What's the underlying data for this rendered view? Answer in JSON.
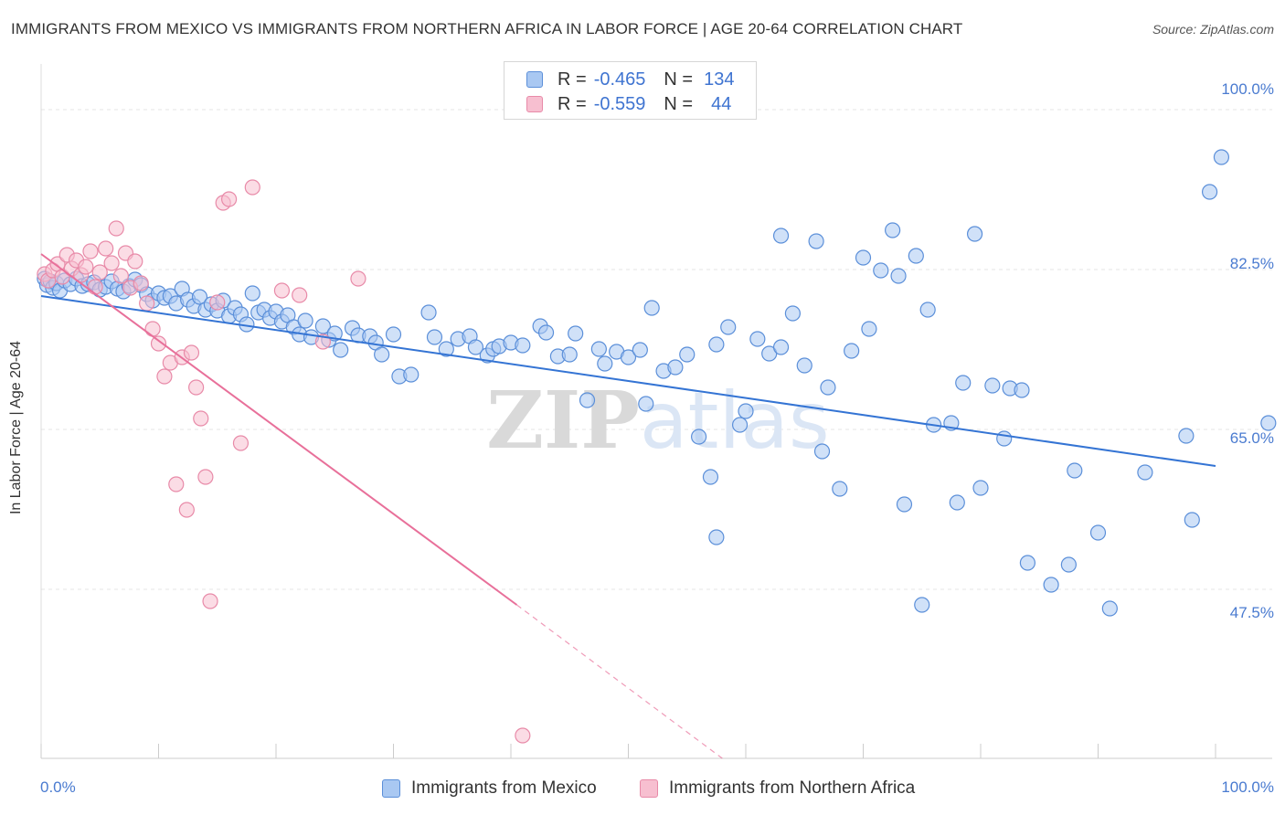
{
  "title": "IMMIGRANTS FROM MEXICO VS IMMIGRANTS FROM NORTHERN AFRICA IN LABOR FORCE | AGE 20-64 CORRELATION CHART",
  "source": "Source: ZipAtlas.com",
  "colors": {
    "mexico_fill": "#a9c8f2",
    "mexico_stroke": "#5b8fd9",
    "mexico_line": "#3474d4",
    "africa_fill": "#f7bfd0",
    "africa_stroke": "#e88aa8",
    "africa_line": "#e8709a",
    "grid": "#e4e4e4",
    "tick_text": "#4a7bd0"
  },
  "legend": {
    "mexico": {
      "r_label": "R =",
      "r_value": "-0.465",
      "n_label": "N =",
      "n_value": "134"
    },
    "africa": {
      "r_label": "R =",
      "r_value": "-0.559",
      "n_label": "N =",
      "n_value": "44"
    }
  },
  "chart_data": {
    "type": "scatter",
    "title": "IMMIGRANTS FROM MEXICO VS IMMIGRANTS FROM NORTHERN AFRICA IN LABOR FORCE | AGE 20-64 CORRELATION CHART",
    "xlabel": "",
    "ylabel": "In Labor Force | Age 20-64",
    "xlim": [
      0,
      100
    ],
    "ylim": [
      29,
      105
    ],
    "x_tick_labels": [
      "0.0%",
      "100.0%"
    ],
    "y_tick_labels": [
      {
        "value": 100.0,
        "label": "100.0%"
      },
      {
        "value": 82.5,
        "label": "82.5%"
      },
      {
        "value": 65.0,
        "label": "65.0%"
      },
      {
        "value": 47.5,
        "label": "47.5%"
      }
    ],
    "legend_position": "top-center",
    "series": [
      {
        "name": "Immigrants from Mexico",
        "color": "#5b8fd9",
        "points": [
          [
            0.3,
            81.5
          ],
          [
            0.5,
            80.8
          ],
          [
            0.8,
            81.2
          ],
          [
            1.0,
            80.5
          ],
          [
            1.3,
            81.0
          ],
          [
            1.6,
            80.2
          ],
          [
            2.0,
            81.3
          ],
          [
            2.5,
            80.9
          ],
          [
            3.0,
            81.5
          ],
          [
            3.5,
            80.7
          ],
          [
            4.0,
            80.9
          ],
          [
            4.5,
            81.1
          ],
          [
            5.0,
            80.3
          ],
          [
            5.5,
            80.6
          ],
          [
            6.0,
            81.2
          ],
          [
            6.5,
            80.4
          ],
          [
            7.0,
            80.1
          ],
          [
            7.5,
            80.7
          ],
          [
            8.0,
            81.4
          ],
          [
            8.5,
            80.8
          ],
          [
            9.0,
            79.8
          ],
          [
            9.5,
            79.1
          ],
          [
            10.0,
            79.9
          ],
          [
            10.5,
            79.4
          ],
          [
            11.0,
            79.6
          ],
          [
            11.5,
            78.8
          ],
          [
            12.0,
            80.4
          ],
          [
            12.5,
            79.2
          ],
          [
            13.0,
            78.5
          ],
          [
            13.5,
            79.5
          ],
          [
            14.0,
            78.1
          ],
          [
            14.5,
            78.7
          ],
          [
            15.0,
            78.0
          ],
          [
            15.5,
            79.1
          ],
          [
            16.0,
            77.4
          ],
          [
            16.5,
            78.3
          ],
          [
            17.0,
            77.6
          ],
          [
            17.5,
            76.5
          ],
          [
            18.0,
            79.9
          ],
          [
            18.5,
            77.8
          ],
          [
            19.0,
            78.1
          ],
          [
            19.5,
            77.2
          ],
          [
            20.0,
            77.9
          ],
          [
            20.5,
            76.8
          ],
          [
            21.0,
            77.5
          ],
          [
            21.5,
            76.2
          ],
          [
            22.0,
            75.4
          ],
          [
            22.5,
            76.9
          ],
          [
            23.0,
            75.1
          ],
          [
            24.0,
            76.3
          ],
          [
            24.5,
            74.8
          ],
          [
            25.0,
            75.5
          ],
          [
            25.5,
            73.7
          ],
          [
            26.5,
            76.1
          ],
          [
            27.0,
            75.3
          ],
          [
            28.0,
            75.2
          ],
          [
            28.5,
            74.5
          ],
          [
            29.0,
            73.2
          ],
          [
            30.0,
            75.4
          ],
          [
            30.5,
            70.8
          ],
          [
            31.5,
            71.0
          ],
          [
            33.0,
            77.8
          ],
          [
            33.5,
            75.1
          ],
          [
            34.5,
            73.8
          ],
          [
            35.5,
            74.9
          ],
          [
            36.5,
            75.2
          ],
          [
            37.0,
            74.0
          ],
          [
            38.0,
            73.1
          ],
          [
            38.5,
            73.8
          ],
          [
            39.0,
            74.1
          ],
          [
            40.0,
            74.5
          ],
          [
            41.0,
            74.2
          ],
          [
            42.5,
            76.3
          ],
          [
            43.0,
            75.6
          ],
          [
            44.0,
            73.0
          ],
          [
            45.0,
            73.2
          ],
          [
            45.5,
            75.5
          ],
          [
            46.5,
            68.2
          ],
          [
            47.5,
            73.8
          ],
          [
            48.0,
            72.2
          ],
          [
            49.0,
            73.5
          ],
          [
            50.0,
            72.9
          ],
          [
            51.0,
            73.7
          ],
          [
            51.5,
            67.8
          ],
          [
            52.0,
            78.3
          ],
          [
            53.0,
            71.4
          ],
          [
            54.0,
            71.8
          ],
          [
            55.0,
            73.2
          ],
          [
            56.0,
            64.2
          ],
          [
            57.0,
            59.8
          ],
          [
            57.5,
            74.3
          ],
          [
            57.5,
            53.2
          ],
          [
            58.5,
            76.2
          ],
          [
            59.5,
            65.5
          ],
          [
            60.0,
            67.0
          ],
          [
            61.0,
            74.9
          ],
          [
            62.0,
            73.3
          ],
          [
            63.0,
            86.2
          ],
          [
            63.0,
            74.0
          ],
          [
            64.0,
            77.7
          ],
          [
            65.0,
            72.0
          ],
          [
            66.0,
            85.6
          ],
          [
            66.5,
            62.6
          ],
          [
            67.0,
            69.6
          ],
          [
            68.0,
            58.5
          ],
          [
            69.0,
            73.6
          ],
          [
            70.0,
            83.8
          ],
          [
            70.5,
            76.0
          ],
          [
            71.5,
            82.4
          ],
          [
            72.5,
            86.8
          ],
          [
            73.0,
            81.8
          ],
          [
            73.5,
            56.8
          ],
          [
            74.5,
            84.0
          ],
          [
            75.0,
            45.8
          ],
          [
            75.5,
            78.1
          ],
          [
            76.0,
            65.5
          ],
          [
            77.5,
            65.7
          ],
          [
            78.0,
            57.0
          ],
          [
            78.5,
            70.1
          ],
          [
            79.5,
            86.4
          ],
          [
            80.0,
            58.6
          ],
          [
            81.0,
            69.8
          ],
          [
            82.0,
            64.0
          ],
          [
            82.5,
            69.5
          ],
          [
            83.5,
            69.3
          ],
          [
            84.0,
            50.4
          ],
          [
            86.0,
            48.0
          ],
          [
            87.5,
            50.2
          ],
          [
            88.0,
            60.5
          ],
          [
            90.0,
            53.7
          ],
          [
            91.0,
            45.4
          ],
          [
            94.0,
            60.3
          ],
          [
            97.5,
            64.3
          ],
          [
            98.0,
            55.1
          ],
          [
            99.5,
            91.0
          ],
          [
            100.5,
            94.8
          ],
          [
            104.5,
            65.7
          ]
        ]
      },
      {
        "name": "Immigrants from Northern Africa",
        "color": "#e88aa8",
        "points": [
          [
            0.3,
            82.0
          ],
          [
            0.6,
            81.3
          ],
          [
            1.0,
            82.4
          ],
          [
            1.4,
            83.1
          ],
          [
            1.8,
            81.7
          ],
          [
            2.2,
            84.1
          ],
          [
            2.6,
            82.6
          ],
          [
            3.0,
            83.5
          ],
          [
            3.4,
            81.9
          ],
          [
            3.8,
            82.8
          ],
          [
            4.2,
            84.5
          ],
          [
            4.6,
            80.6
          ],
          [
            5.0,
            82.2
          ],
          [
            5.5,
            84.8
          ],
          [
            6.0,
            83.2
          ],
          [
            6.4,
            87.0
          ],
          [
            6.8,
            81.8
          ],
          [
            7.2,
            84.3
          ],
          [
            7.6,
            80.5
          ],
          [
            8.0,
            83.4
          ],
          [
            8.5,
            81.0
          ],
          [
            9.0,
            78.8
          ],
          [
            9.5,
            76.0
          ],
          [
            10.0,
            74.4
          ],
          [
            10.5,
            70.8
          ],
          [
            11.0,
            72.3
          ],
          [
            11.5,
            59.0
          ],
          [
            12.0,
            72.9
          ],
          [
            12.4,
            56.2
          ],
          [
            12.8,
            73.4
          ],
          [
            13.2,
            69.6
          ],
          [
            13.6,
            66.2
          ],
          [
            14.0,
            59.8
          ],
          [
            14.4,
            46.2
          ],
          [
            15.0,
            78.9
          ],
          [
            15.5,
            89.8
          ],
          [
            16.0,
            90.2
          ],
          [
            17.0,
            63.5
          ],
          [
            18.0,
            91.5
          ],
          [
            20.5,
            80.2
          ],
          [
            22.0,
            79.7
          ],
          [
            24.0,
            74.6
          ],
          [
            27.0,
            81.5
          ],
          [
            41.0,
            31.5
          ]
        ]
      }
    ],
    "trend_lines": [
      {
        "series": "Immigrants from Mexico",
        "x": [
          0,
          100
        ],
        "y": [
          79.6,
          61.0
        ]
      },
      {
        "series": "Immigrants from Northern Africa",
        "x": [
          0,
          40.5
        ],
        "y": [
          84.2,
          45.8
        ],
        "dashed_to": {
          "x": [
            40.5,
            58
          ],
          "y": [
            45.8,
            29.0
          ]
        }
      }
    ]
  },
  "bottom_legend": {
    "mexico": "Immigrants from Mexico",
    "africa": "Immigrants from Northern Africa"
  },
  "watermark": "ZIPatlas"
}
